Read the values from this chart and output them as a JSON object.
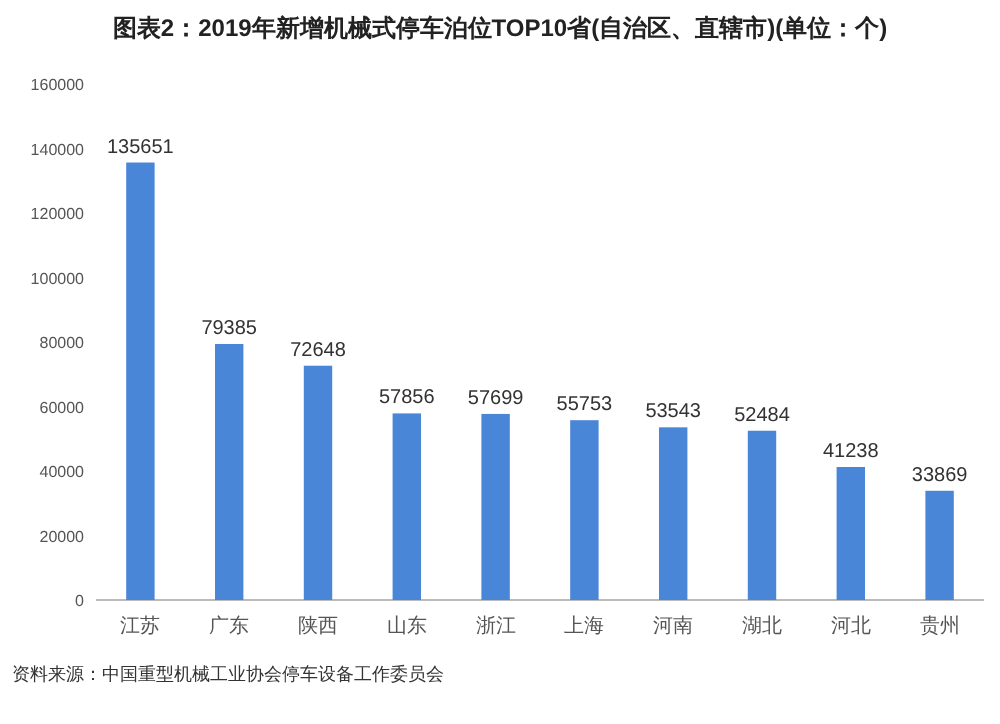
{
  "chart_data": {
    "type": "bar",
    "title": "图表2：2019年新增机械式停车泊位TOP10省(自治区、直辖市)(单位：个)",
    "categories": [
      "江苏",
      "广东",
      "陕西",
      "山东",
      "浙江",
      "上海",
      "河南",
      "湖北",
      "河北",
      "贵州"
    ],
    "values": [
      135651,
      79385,
      72648,
      57856,
      57699,
      55753,
      53543,
      52484,
      41238,
      33869
    ],
    "color": "#4a86d8",
    "ylim": [
      0,
      160000
    ],
    "yticks": [
      0,
      20000,
      40000,
      60000,
      80000,
      100000,
      120000,
      140000,
      160000
    ],
    "grid": false,
    "data_labels": true,
    "annotations": [
      "资料来源：中国重型机械工业协会停车设备工作委员会"
    ]
  }
}
